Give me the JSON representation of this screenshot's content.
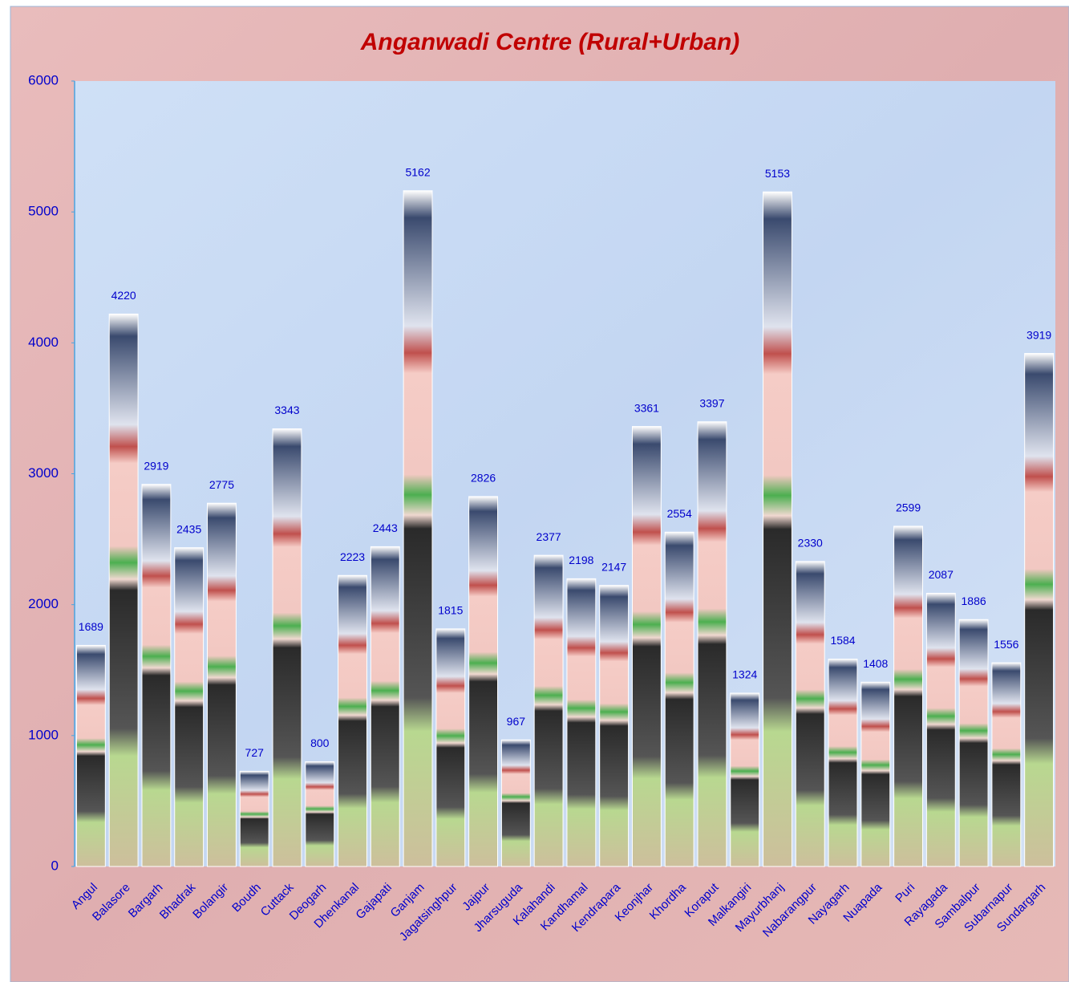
{
  "chart_data": {
    "type": "bar",
    "title": "Anganwadi Centre (Rural+Urban)",
    "categories": [
      "Angul",
      "Balasore",
      "Bargarh",
      "Bhadrak",
      "Bolangir",
      "Boudh",
      "Cuttack",
      "Deogarh",
      "Dhenkanal",
      "Gajapati",
      "Ganjam",
      "Jagatsinghpur",
      "Jajpur",
      "Jharsuguda",
      "Kalahandi",
      "Kandhamal",
      "Kendrapara",
      "Keonjhar",
      "Khordha",
      "Koraput",
      "Malkangiri",
      "Mayurbhanj",
      "Nabarangpur",
      "Nayagarh",
      "Nuapada",
      "Puri",
      "Rayagada",
      "Sambalpur",
      "Subarnapur",
      "Sundargarh"
    ],
    "values": [
      1689,
      4220,
      2919,
      2435,
      2775,
      727,
      3343,
      800,
      2223,
      2443,
      5162,
      1815,
      2826,
      967,
      2377,
      2198,
      2147,
      3361,
      2554,
      3397,
      1324,
      5153,
      2330,
      1584,
      1408,
      2599,
      2087,
      1886,
      1556,
      3919
    ],
    "ylim": [
      0,
      6000
    ],
    "yticks": [
      0,
      1000,
      2000,
      3000,
      4000,
      5000,
      6000
    ],
    "grid": false
  }
}
